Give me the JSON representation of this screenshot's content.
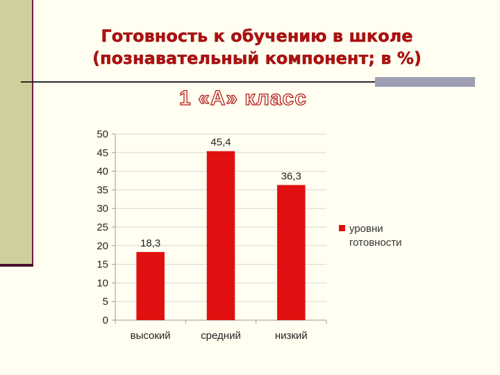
{
  "slide": {
    "title_line1": "Готовность к обучению в школе",
    "title_line2": "(познавательный компонент; в %)",
    "subtitle": "1 «А» класс"
  },
  "colors": {
    "bar": "#e01010",
    "title": "#b01010",
    "band": "#cfcf9b"
  },
  "chart_data": {
    "type": "bar",
    "categories": [
      "высокий",
      "средний",
      "низкий"
    ],
    "series": [
      {
        "name": "уровни готовности",
        "values": [
          18.3,
          45.4,
          36.3
        ]
      }
    ],
    "data_labels": [
      "18,3",
      "45,4",
      "36,3"
    ],
    "ylim": [
      0,
      50
    ],
    "yticks": [
      0,
      5,
      10,
      15,
      20,
      25,
      30,
      35,
      40,
      45,
      50
    ],
    "grid": true,
    "legend": {
      "placement": "right",
      "lines": [
        "уровни",
        "готовности"
      ]
    }
  }
}
